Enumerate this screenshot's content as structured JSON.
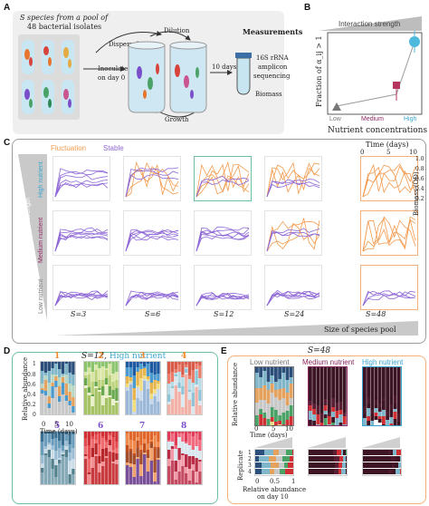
{
  "panels": {
    "A": "A",
    "B": "B",
    "C": "C",
    "D": "D",
    "E": "E"
  },
  "panelA": {
    "pool_text_1": "S species from a pool of",
    "pool_text_2": "48 bacterial isolates",
    "dispersal": "Dispersal",
    "dilution": "Dilution",
    "inoculate_1": "Inoculate",
    "inoculate_2": "on day 0",
    "growth": "Growth",
    "ten_days": "10 days",
    "measurements": "Measurements",
    "meas_1": "16S rRNA",
    "meas_2": "amplicon",
    "meas_3": "sequencing",
    "biomass": "Biomass"
  },
  "panelB": {
    "title": "Interaction strength",
    "ylabel": "Fraction of α_ij > 1",
    "xlabel": "Nutrient concentrations",
    "chart_data": {
      "type": "scatter",
      "categories": [
        "Low",
        "Medium",
        "High"
      ],
      "values": [
        0.08,
        0.32,
        0.8
      ],
      "markers": [
        "triangle",
        "square",
        "circle"
      ],
      "colors": [
        "#777777",
        "#b5365f",
        "#4fb9dd"
      ]
    }
  },
  "panelC": {
    "legend_fluct": "Fluctuation",
    "legend_stable": "Stable",
    "time_label": "Time (days)",
    "time_ticks": [
      "0",
      "5",
      "10"
    ],
    "biomass_label": "Biomass (OD)",
    "biomass_ticks": [
      "1.0",
      "0.8",
      "0.6",
      "0.4",
      "0.2"
    ],
    "interaction_label": "Interaction strength",
    "rows": [
      "High nutrient",
      "Medium nutrient",
      "Low nutrient"
    ],
    "row_colors": [
      "#3aa6cf",
      "#8e2a62",
      "#777777"
    ],
    "pools": [
      "S=3",
      "S=6",
      "S=12",
      "S=24",
      "S=48"
    ],
    "pool_label": "Size of species pool"
  },
  "panelD": {
    "title_prefix": "S=12,",
    "title_highlight": "High nutrient",
    "ylabel": "Relative abundance",
    "xlabel": "Time (days)",
    "yticks": [
      "1",
      "0.8",
      "0.6",
      "0.4",
      "0.2",
      "0"
    ],
    "xticks": [
      "0",
      "5",
      "10"
    ],
    "numbers": [
      "1",
      "2",
      "3",
      "4",
      "5",
      "6",
      "7",
      "8"
    ],
    "number_colors": [
      "#f08a2b",
      "#f08a2b",
      "#f08a2b",
      "#f08a2b",
      "#7b4fc9",
      "#7b4fc9",
      "#7b4fc9",
      "#7b4fc9"
    ]
  },
  "panelE": {
    "title": "S=48",
    "cols": [
      "Low nutrient",
      "Medium nutrient",
      "High nutrient"
    ],
    "col_colors": [
      "#777777",
      "#8e2a62",
      "#3aa6cf"
    ],
    "ylabel": "Relative abundance",
    "yticks": [
      "1",
      "0.8",
      "0.6",
      "0.4",
      "0.2",
      "0"
    ],
    "xlabel": "Time (days)",
    "xticks": [
      "0",
      "5",
      "10"
    ],
    "rep_label": "Replicate",
    "rep_ticks": [
      "1",
      "2",
      "3",
      "4"
    ],
    "bottom_xlabel_1": "Relative abundance",
    "bottom_xlabel_2": "on day 10",
    "bottom_xticks": [
      "0",
      "0.5",
      "1"
    ]
  },
  "colors": {
    "orange": "#f39a4c",
    "purple": "#8e67d6",
    "teal": "#3aa6cf",
    "maroon": "#8e2a62",
    "gray": "#777777"
  }
}
